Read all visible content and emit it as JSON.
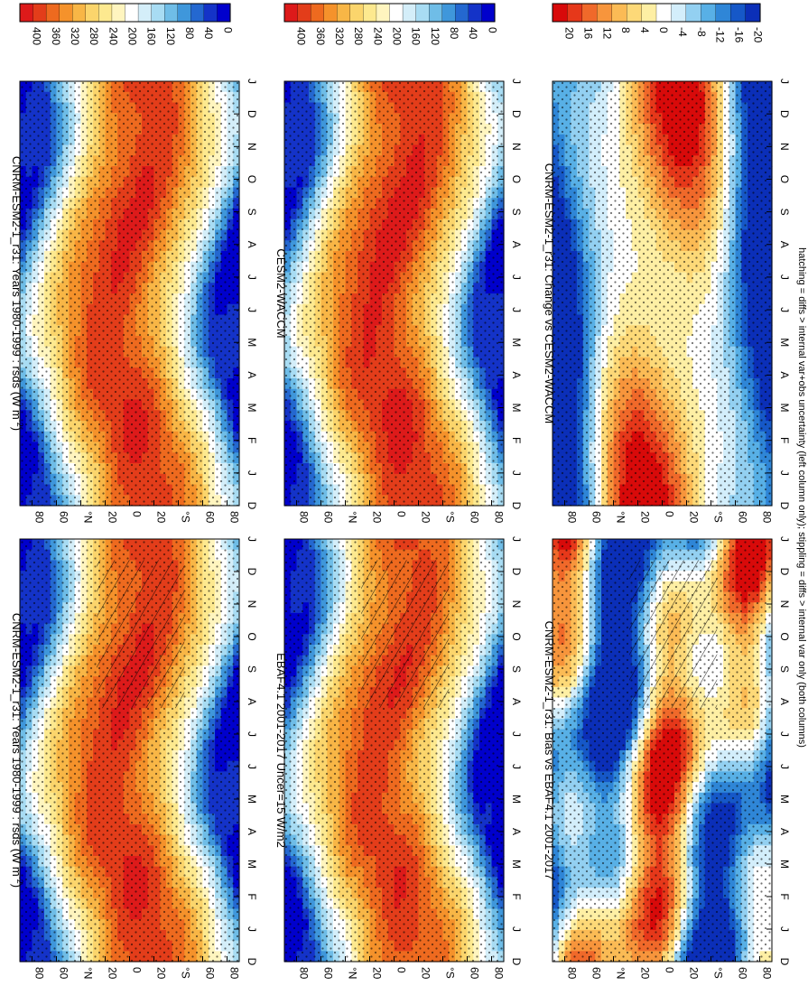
{
  "chart_data": {
    "type": "heatmap",
    "orientation_note": "rotated 90 degrees; months run bottom-to-top, latitude runs left-to-right",
    "footnote": "hatching = diffs > internal var+obs uncertainty (left column only); stippling = diffs > internal var only (both columns)",
    "months": [
      "D",
      "J",
      "F",
      "M",
      "A",
      "M",
      "J",
      "J",
      "A",
      "S",
      "O",
      "N",
      "D",
      "J"
    ],
    "lat_ticks": [
      "80",
      "60",
      "°N",
      "20",
      "0",
      "20",
      "°S",
      "60",
      "80"
    ],
    "panels": [
      {
        "id": "p-model-left",
        "title": "CNRM-ESM2-1_r31: Years 1980-1999 : rsds (W m",
        "title_sup": "-2",
        "title_tail": ")",
        "variable": "rsds",
        "units": "W m-2",
        "kind": "absolute",
        "colorbar_ticks": [
          "400",
          "360",
          "320",
          "280",
          "240",
          "200",
          "160",
          "120",
          "80",
          "40",
          "0"
        ],
        "range": [
          0,
          420
        ],
        "hatch": true
      },
      {
        "id": "p-model-right",
        "title": "CNRM-ESM2-1_r31: Years 1980-1999 : rsds (W m",
        "title_sup": "-2",
        "title_tail": ")",
        "variable": "rsds",
        "units": "W m-2",
        "kind": "absolute",
        "colorbar_ticks": [
          "400",
          "360",
          "320",
          "280",
          "240",
          "200",
          "160",
          "120",
          "80",
          "40",
          "0"
        ],
        "range": [
          0,
          420
        ],
        "hatch": false
      },
      {
        "id": "p-obs",
        "title": "EBAF4.1 2001-2017 Uncer=15 W/m2",
        "title_sup": "",
        "title_tail": "",
        "kind": "absolute",
        "colorbar_ticks": [
          "400",
          "360",
          "320",
          "280",
          "240",
          "200",
          "160",
          "120",
          "80",
          "40",
          "0"
        ],
        "range": [
          0,
          420
        ],
        "hatch": true
      },
      {
        "id": "p-ref-model",
        "title": "CESM2-WACCM",
        "title_sup": "",
        "title_tail": "",
        "kind": "absolute",
        "colorbar_ticks": [
          "400",
          "360",
          "320",
          "280",
          "240",
          "200",
          "160",
          "120",
          "80",
          "40",
          "0"
        ],
        "range": [
          0,
          420
        ],
        "hatch": false
      },
      {
        "id": "p-bias",
        "title": "CNRM-ESM2-1_r31: Bias vs EBAF4.1 2001-2017",
        "title_sup": "",
        "title_tail": "",
        "kind": "difference",
        "colorbar_ticks": [
          "20",
          "16",
          "12",
          "8",
          "4",
          "0",
          "-4",
          "-8",
          "-12",
          "-16",
          "-20"
        ],
        "range": [
          -22,
          22
        ],
        "hatch": true
      },
      {
        "id": "p-change",
        "title": "CNRM-ESM2-1_r31: Change vs CESM2-WACCM",
        "title_sup": "",
        "title_tail": "",
        "kind": "difference",
        "colorbar_ticks": [
          "20",
          "16",
          "12",
          "8",
          "4",
          "0",
          "-4",
          "-8",
          "-12",
          "-16",
          "-20"
        ],
        "range": [
          -22,
          22
        ],
        "hatch": false
      }
    ]
  }
}
